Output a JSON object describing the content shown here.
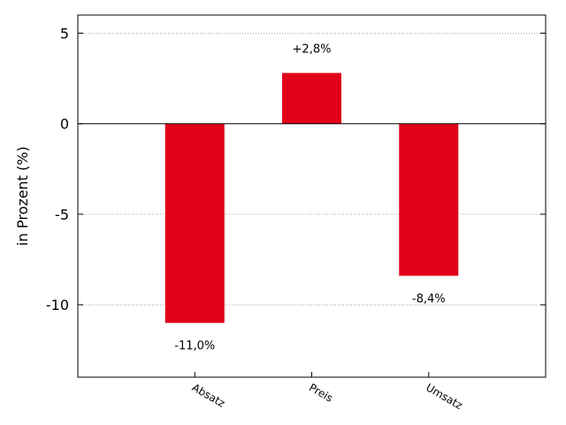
{
  "chart_data": {
    "type": "bar",
    "categories": [
      "Absatz",
      "Preis",
      "Umsatz"
    ],
    "values": [
      -11.0,
      2.8,
      -8.4
    ],
    "data_labels": [
      "-11,0%",
      "+2,8%",
      "-8,4%"
    ],
    "ylabel": "in Prozent (%)",
    "ylim": [
      -14,
      6
    ],
    "yticks": [
      5,
      0,
      -5,
      -10
    ],
    "ytick_labels": [
      "5",
      "0",
      "-5",
      "-10"
    ],
    "grid": "horizontal-dotted",
    "bar_color": "#e2001a"
  }
}
